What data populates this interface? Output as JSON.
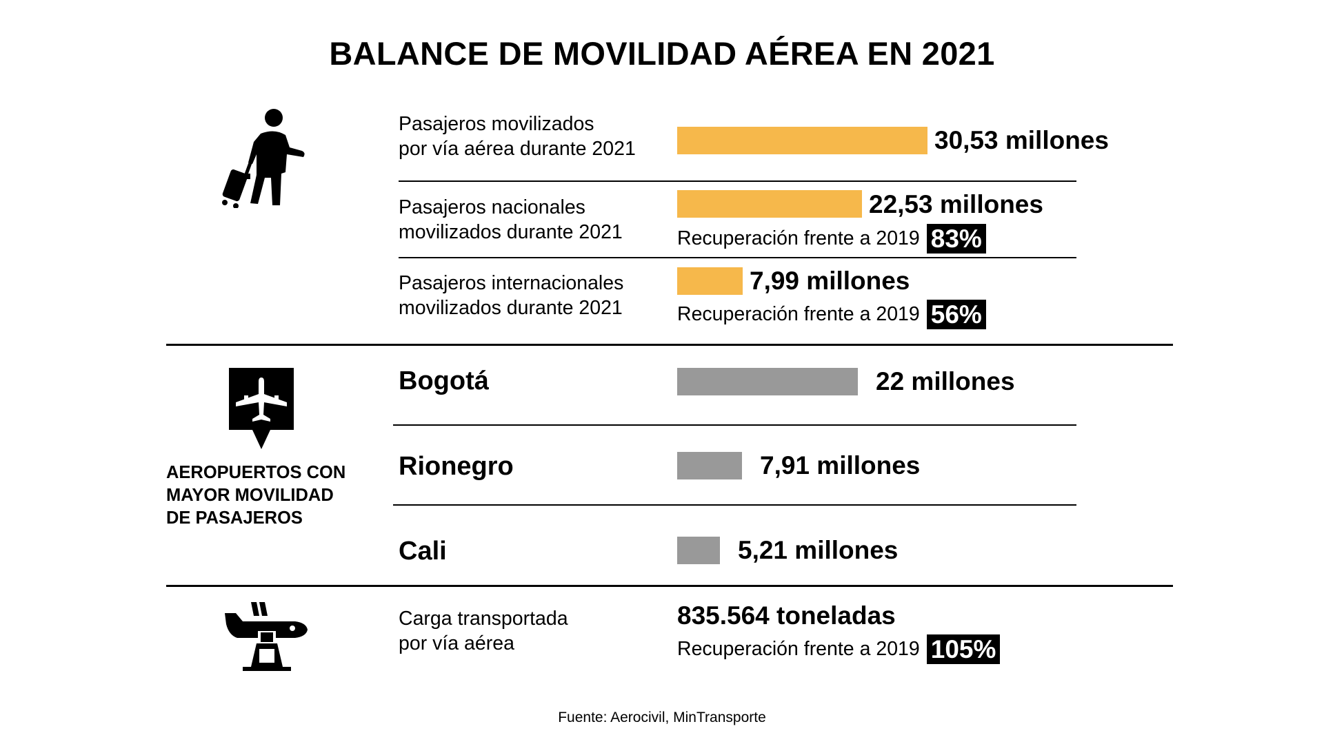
{
  "title": "BALANCE DE MOVILIDAD AÉREA EN 2021",
  "icons": {
    "traveler": "traveler-with-luggage-icon",
    "airport_pin": "airplane-pin-icon",
    "cargo": "cargo-plane-icon"
  },
  "passengers": {
    "total": {
      "label_line1": "Pasajeros movilizados",
      "label_line2": "por vía aérea durante 2021",
      "value_text": "30,53 millones"
    },
    "national": {
      "label_line1": "Pasajeros nacionales",
      "label_line2": "movilizados durante 2021",
      "value_text": "22,53 millones",
      "recovery_label": "Recuperación frente a 2019",
      "recovery_pct": "83%"
    },
    "international": {
      "label_line1": "Pasajeros internacionales",
      "label_line2": "movilizados durante 2021",
      "value_text": "7,99 millones",
      "recovery_label": "Recuperación frente a 2019",
      "recovery_pct": "56%"
    }
  },
  "airports": {
    "heading_line1": "AEROPUERTOS CON",
    "heading_line2": "MAYOR MOVILIDAD",
    "heading_line3": "DE PASAJEROS",
    "items": [
      {
        "name": "Bogotá",
        "value_text": "22 millones"
      },
      {
        "name": "Rionegro",
        "value_text": "7,91 millones"
      },
      {
        "name": "Cali",
        "value_text": "5,21 millones"
      }
    ]
  },
  "cargo": {
    "label_line1": "Carga transportada",
    "label_line2": "por vía aérea",
    "value_text": "835.564 toneladas",
    "recovery_label": "Recuperación frente a 2019",
    "recovery_pct": "105%"
  },
  "source": "Fuente: Aerocivil, MinTransporte",
  "colors": {
    "passenger_bar": "#f6b84b",
    "airport_bar": "#999999",
    "badge_bg": "#000000",
    "badge_text": "#ffffff"
  },
  "chart_data": [
    {
      "type": "bar",
      "title": "Pasajeros movilizados durante 2021",
      "unit": "millones",
      "categories": [
        "Pasajeros movilizados por vía aérea durante 2021",
        "Pasajeros nacionales movilizados durante 2021",
        "Pasajeros internacionales movilizados durante 2021"
      ],
      "values": [
        30.53,
        22.53,
        7.99
      ],
      "recovery_vs_2019_pct": [
        null,
        83,
        56
      ],
      "orientation": "horizontal"
    },
    {
      "type": "bar",
      "title": "Aeropuertos con mayor movilidad de pasajeros",
      "unit": "millones",
      "categories": [
        "Bogotá",
        "Rionegro",
        "Cali"
      ],
      "values": [
        22,
        7.91,
        5.21
      ],
      "orientation": "horizontal"
    }
  ]
}
